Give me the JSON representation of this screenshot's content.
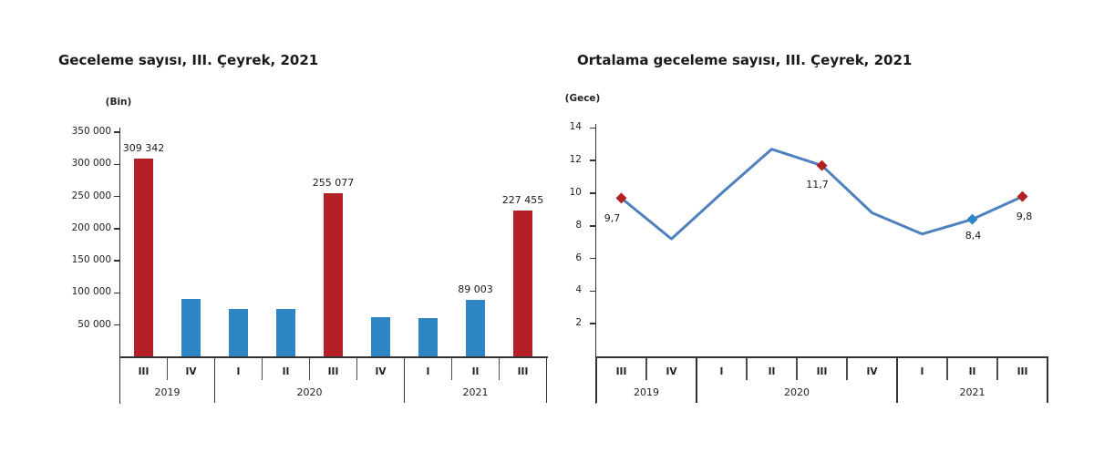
{
  "colors": {
    "bar_blue": "#2E85C4",
    "bar_red": "#B32025",
    "line_blue": "#4E81BD",
    "marker_red": "#B32025",
    "marker_blue": "#2E85C4",
    "axis_dark": "#333333",
    "axis_gray": "#4d4d4d",
    "text_dark": "#1a1a1a"
  },
  "chart_data": [
    {
      "id": "overnight-stays",
      "type": "bar",
      "title": "Geceleme sayısı, III. Çeyrek, 2021",
      "unit_label": "(Bin)",
      "categories": [
        "III",
        "IV",
        "I",
        "II",
        "III",
        "IV",
        "I",
        "II",
        "III"
      ],
      "year_groups": [
        {
          "label": "2019",
          "span": 2
        },
        {
          "label": "2020",
          "span": 4
        },
        {
          "label": "2021",
          "span": 3
        }
      ],
      "values": [
        309342,
        90000,
        75000,
        75000,
        255077,
        63000,
        61000,
        89003,
        227455
      ],
      "highlight_red_indexes": [
        0,
        4,
        8
      ],
      "data_labels": [
        {
          "index": 0,
          "text": "309 342"
        },
        {
          "index": 4,
          "text": "255 077"
        },
        {
          "index": 7,
          "text": "89 003"
        },
        {
          "index": 8,
          "text": "227 455"
        }
      ],
      "yticks": [
        {
          "value": 50000,
          "text": "50 000"
        },
        {
          "value": 100000,
          "text": "100 000"
        },
        {
          "value": 150000,
          "text": "150 000"
        },
        {
          "value": 200000,
          "text": "200 000"
        },
        {
          "value": 250000,
          "text": "250 000"
        },
        {
          "value": 300000,
          "text": "300 000"
        },
        {
          "value": 350000,
          "text": "350 000"
        }
      ],
      "ylim": [
        0,
        350000
      ],
      "grid": false,
      "legend": "none"
    },
    {
      "id": "average-overnight-stays",
      "type": "line",
      "title": "Ortalama geceleme sayısı, III. Çeyrek, 2021",
      "unit_label": "(Gece)",
      "categories": [
        "III",
        "IV",
        "I",
        "II",
        "III",
        "IV",
        "I",
        "II",
        "III"
      ],
      "year_groups": [
        {
          "label": "2019",
          "span": 2
        },
        {
          "label": "2020",
          "span": 4
        },
        {
          "label": "2021",
          "span": 3
        }
      ],
      "values": [
        9.7,
        7.2,
        10.0,
        12.7,
        11.7,
        8.8,
        7.5,
        8.4,
        9.8
      ],
      "markers": [
        {
          "index": 0,
          "color_key": "marker_red"
        },
        {
          "index": 4,
          "color_key": "marker_red"
        },
        {
          "index": 7,
          "color_key": "marker_blue"
        },
        {
          "index": 8,
          "color_key": "marker_red"
        }
      ],
      "data_labels": [
        {
          "index": 0,
          "text": "9,7"
        },
        {
          "index": 4,
          "text": "11,7"
        },
        {
          "index": 7,
          "text": "8,4"
        },
        {
          "index": 8,
          "text": "9,8"
        }
      ],
      "yticks": [
        {
          "value": 2,
          "text": "2"
        },
        {
          "value": 4,
          "text": "4"
        },
        {
          "value": 6,
          "text": "6"
        },
        {
          "value": 8,
          "text": "8"
        },
        {
          "value": 10,
          "text": "10"
        },
        {
          "value": 12,
          "text": "12"
        },
        {
          "value": 14,
          "text": "14"
        }
      ],
      "ylim": [
        0,
        14
      ],
      "grid": false,
      "legend": "none"
    }
  ]
}
